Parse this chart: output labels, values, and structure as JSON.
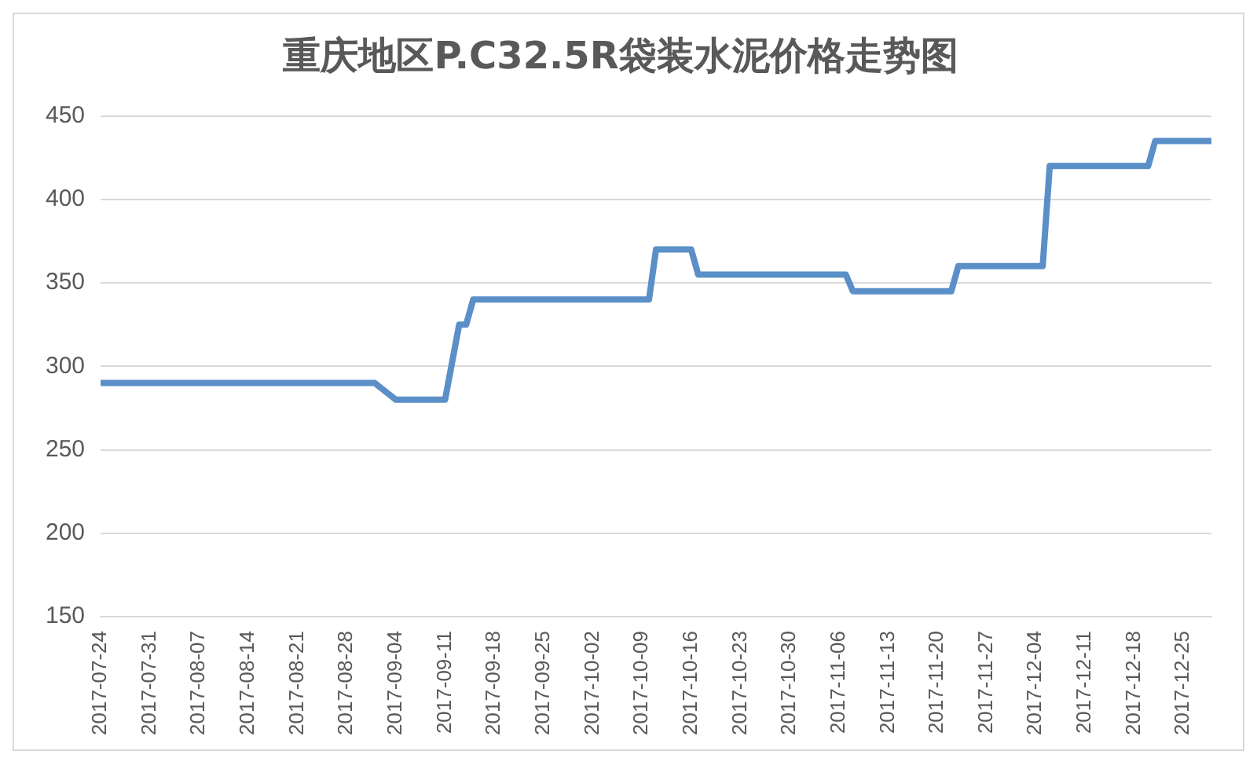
{
  "chart_data": {
    "type": "line",
    "title": "重庆地区P.C32.5R袋装水泥价格走势图",
    "x": [
      "2017-07-24",
      "2017-09-01",
      "2017-09-04",
      "2017-09-11",
      "2017-09-13",
      "2017-09-14",
      "2017-09-15",
      "2017-10-10",
      "2017-10-11",
      "2017-10-16",
      "2017-10-17",
      "2017-11-07",
      "2017-11-08",
      "2017-11-22",
      "2017-11-23",
      "2017-12-05",
      "2017-12-06",
      "2017-12-20",
      "2017-12-21",
      "2017-12-29"
    ],
    "series": [
      {
        "color": "#5b8fc7",
        "values": [
          290,
          290,
          280,
          280,
          325,
          325,
          340,
          340,
          370,
          370,
          355,
          355,
          345,
          345,
          360,
          360,
          420,
          420,
          435,
          435
        ]
      }
    ],
    "xlim": [
      "2017-07-24",
      "2017-12-29"
    ],
    "xticks": [
      "2017-07-24",
      "2017-07-31",
      "2017-08-07",
      "2017-08-14",
      "2017-08-21",
      "2017-08-28",
      "2017-09-04",
      "2017-09-11",
      "2017-09-18",
      "2017-09-25",
      "2017-10-02",
      "2017-10-09",
      "2017-10-16",
      "2017-10-23",
      "2017-10-30",
      "2017-11-06",
      "2017-11-13",
      "2017-11-20",
      "2017-11-27",
      "2017-12-04",
      "2017-12-11",
      "2017-12-18",
      "2017-12-25"
    ],
    "ylim": [
      150,
      450
    ],
    "yticks": [
      150,
      200,
      250,
      300,
      350,
      400,
      450
    ],
    "grid": "y",
    "legend": false,
    "marker": "none",
    "line_style": "solid"
  }
}
